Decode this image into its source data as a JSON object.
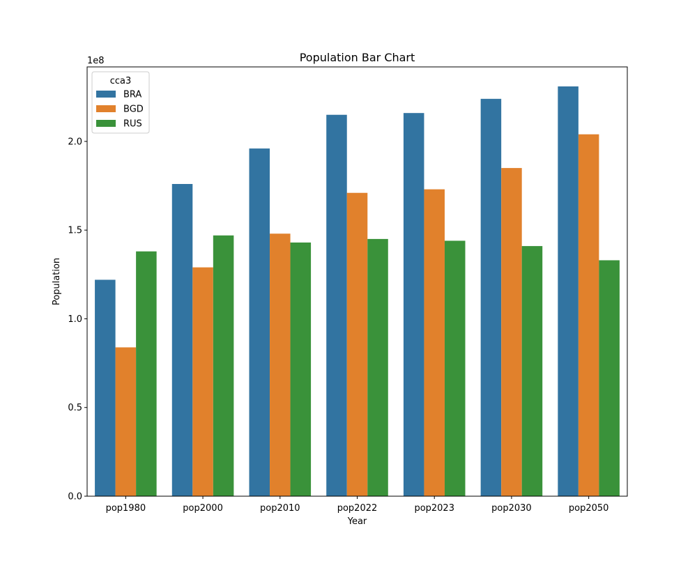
{
  "chart_data": {
    "type": "bar",
    "title": "Population Bar Chart",
    "xlabel": "Year",
    "ylabel": "Population",
    "y_offset_label": "1e8",
    "ylim": [
      0,
      242000000
    ],
    "yticks": [
      0,
      50000000,
      100000000,
      150000000,
      200000000
    ],
    "ytick_labels": [
      "0.0",
      "0.5",
      "1.0",
      "1.5",
      "2.0"
    ],
    "categories": [
      "pop1980",
      "pop2000",
      "pop2010",
      "pop2022",
      "pop2023",
      "pop2030",
      "pop2050"
    ],
    "legend": {
      "title": "cca3",
      "placement": "top-left"
    },
    "grid": false,
    "series": [
      {
        "name": "BRA",
        "color": "#3274a1",
        "values": [
          122000000,
          176000000,
          196000000,
          215000000,
          216000000,
          224000000,
          231000000
        ]
      },
      {
        "name": "BGD",
        "color": "#e1812c",
        "values": [
          83900000,
          129000000,
          148000000,
          171000000,
          173000000,
          185000000,
          204000000
        ]
      },
      {
        "name": "RUS",
        "color": "#3a923a",
        "values": [
          138000000,
          147000000,
          143000000,
          145000000,
          144000000,
          141000000,
          133000000
        ]
      }
    ]
  }
}
